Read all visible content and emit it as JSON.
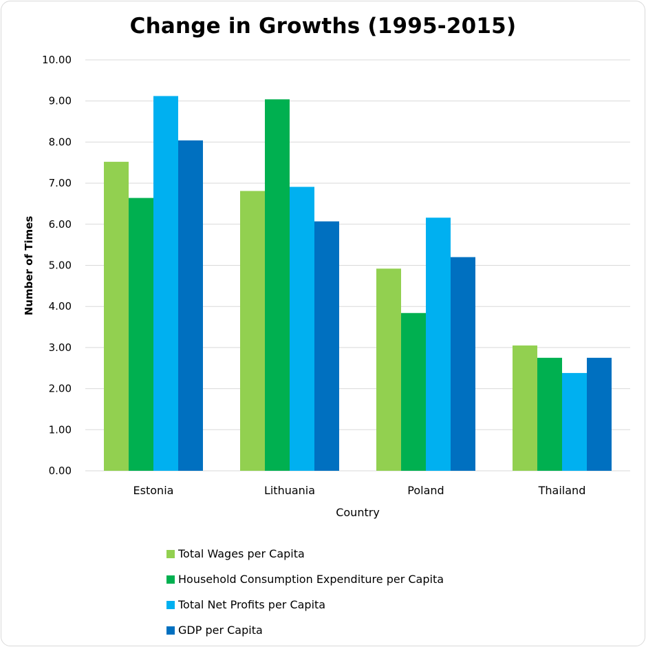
{
  "chart_data": {
    "type": "bar",
    "title": "Change in Growths (1995-2015)",
    "xlabel": "Country",
    "ylabel": "Number of Times",
    "ylim": [
      0,
      10
    ],
    "yticks": [
      "0.00",
      "1.00",
      "2.00",
      "3.00",
      "4.00",
      "5.00",
      "6.00",
      "7.00",
      "8.00",
      "9.00",
      "10.00"
    ],
    "categories": [
      "Estonia",
      "Lithuania",
      "Poland",
      "Thailand"
    ],
    "series": [
      {
        "name": "Total Wages per Capita",
        "color": "#92d050",
        "values": [
          7.52,
          6.81,
          4.92,
          3.05
        ]
      },
      {
        "name": "Household Consumption Expenditure per Capita",
        "color": "#00b050",
        "values": [
          6.64,
          9.04,
          3.84,
          2.75
        ]
      },
      {
        "name": "Total Net Profits per Capita",
        "color": "#00b0f0",
        "values": [
          9.12,
          6.91,
          6.16,
          2.38
        ]
      },
      {
        "name": "GDP per Capita",
        "color": "#0070c0",
        "values": [
          8.04,
          6.07,
          5.2,
          2.75
        ]
      }
    ],
    "grid": true,
    "legend": "bottom"
  }
}
